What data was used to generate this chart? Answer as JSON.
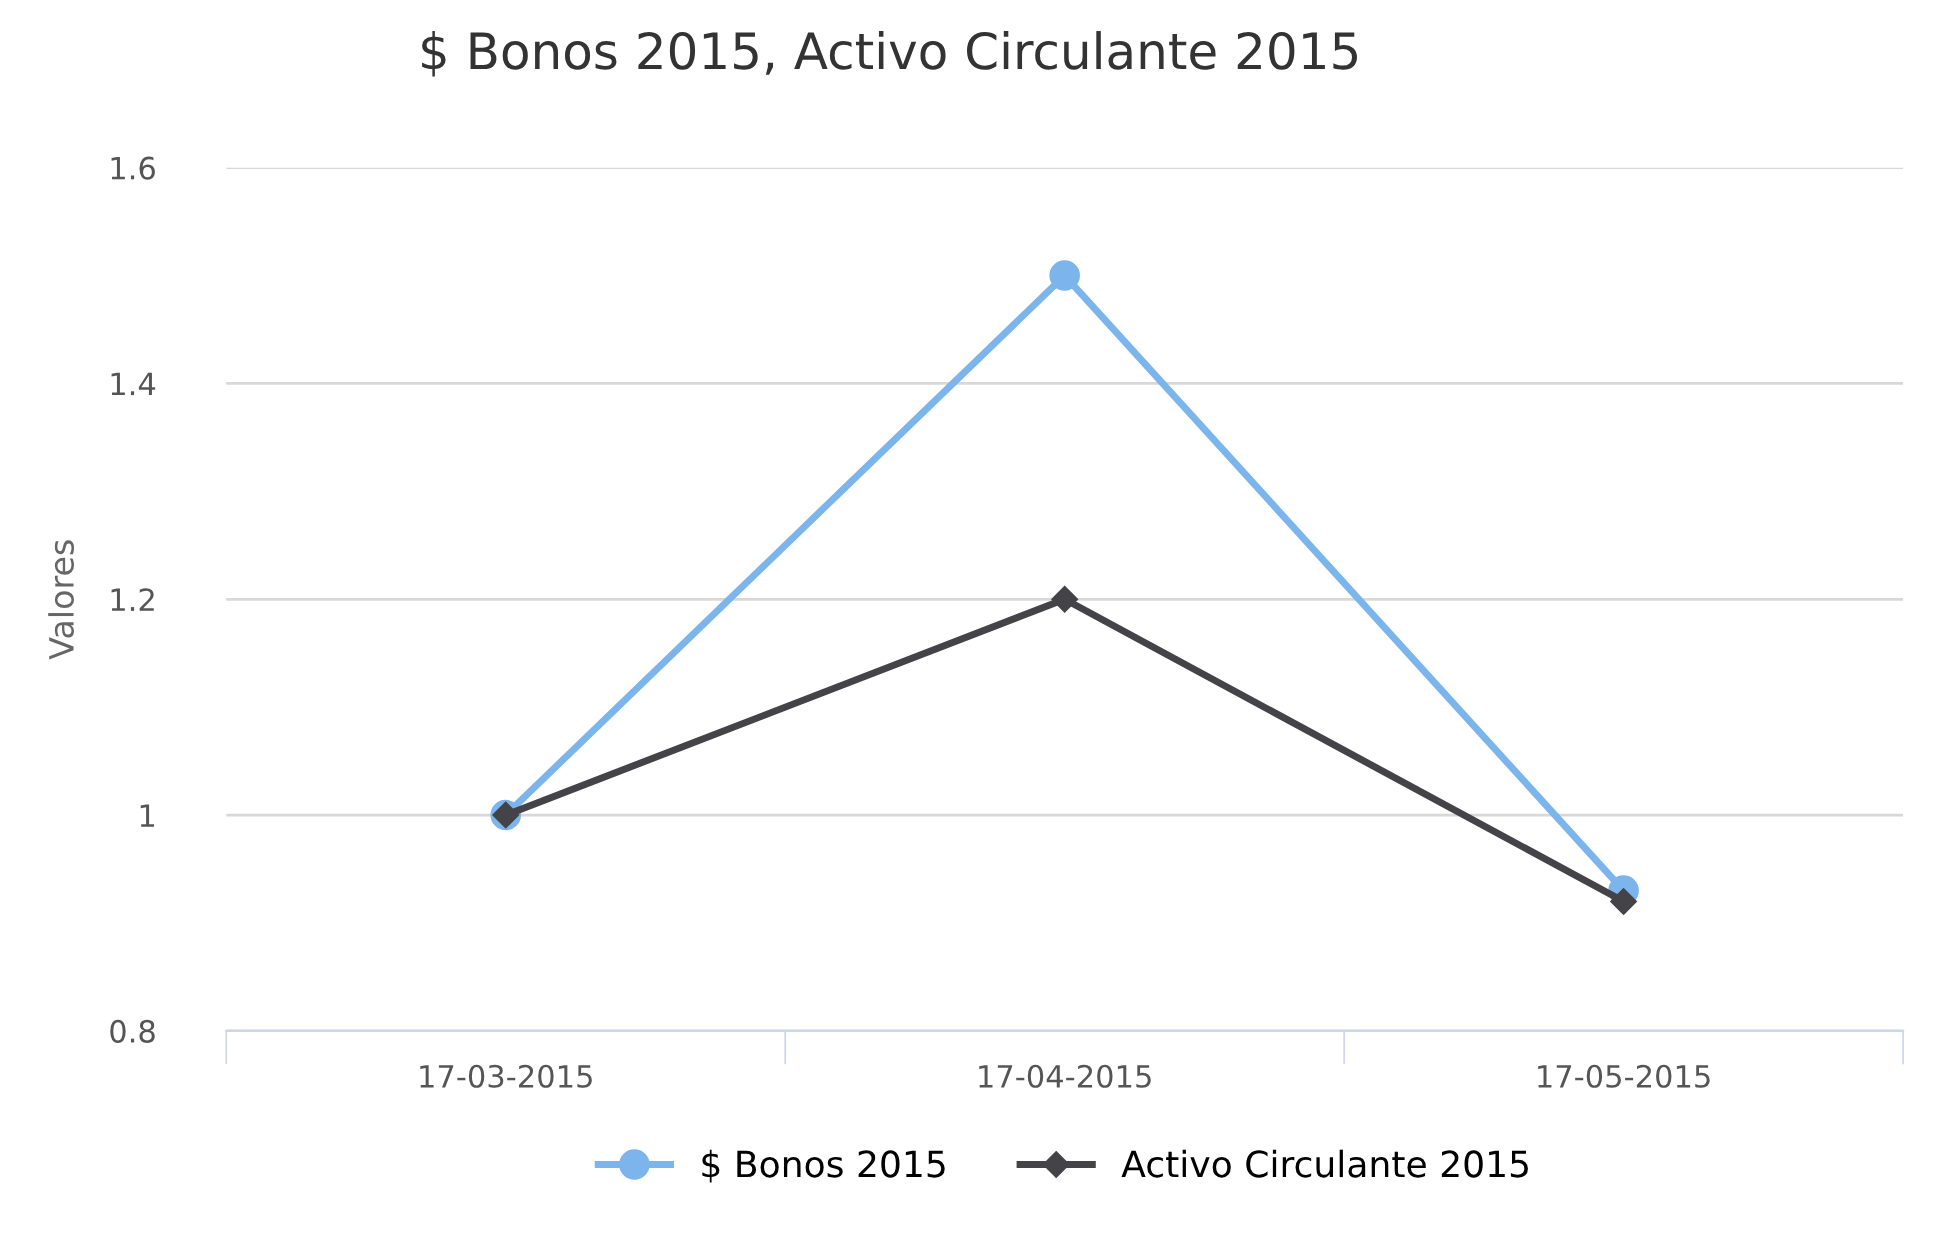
{
  "chart_data": {
    "type": "line",
    "title": "$ Bonos 2015, Activo Circulante 2015",
    "ylabel": "Valores",
    "categories": [
      "17-03-2015",
      "17-04-2015",
      "17-05-2015"
    ],
    "series": [
      {
        "name": "$ Bonos 2015",
        "color": "#7cb5ec",
        "marker": "circle",
        "values": [
          1,
          1.5,
          0.93
        ]
      },
      {
        "name": "Activo Circulante 2015",
        "color": "#434348",
        "marker": "diamond",
        "values": [
          1,
          1.2,
          0.92
        ]
      }
    ],
    "ylim": [
      0.8,
      1.6
    ],
    "yticks": [
      {
        "value": 0.8,
        "label": "0.8"
      },
      {
        "value": 1,
        "label": "1"
      },
      {
        "value": 1.2,
        "label": "1.2"
      },
      {
        "value": 1.4,
        "label": "1.4"
      },
      {
        "value": 1.6,
        "label": "1.6"
      }
    ],
    "grid": "y",
    "legend": "bottom",
    "line_style": "solid"
  }
}
